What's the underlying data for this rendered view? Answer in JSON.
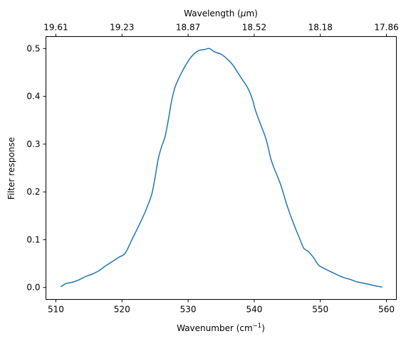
{
  "chart_data": {
    "type": "line",
    "xlabel": "Wavenumber (cm",
    "xlabel_sup": "−1",
    "xlabel_end": ")",
    "ylabel": "Filter response",
    "top_xlabel_pre": "Wavelength (",
    "top_xlabel_mu": "μ",
    "top_xlabel_post": "m)",
    "xlim": [
      508.5,
      561.5
    ],
    "ylim": [
      -0.025,
      0.525
    ],
    "x_ticks": [
      510,
      520,
      530,
      540,
      550,
      560
    ],
    "x_tick_labels": [
      "510",
      "520",
      "530",
      "540",
      "550",
      "560"
    ],
    "y_ticks": [
      0.0,
      0.1,
      0.2,
      0.3,
      0.4,
      0.5
    ],
    "y_tick_labels": [
      "0.0",
      "0.1",
      "0.2",
      "0.3",
      "0.4",
      "0.5"
    ],
    "top_ticks": [
      510,
      520,
      530,
      540,
      550,
      560
    ],
    "top_tick_labels": [
      "19.61",
      "19.23",
      "18.87",
      "18.52",
      "18.18",
      "17.86"
    ],
    "grid": false,
    "series": [
      {
        "color": "#1f77b4",
        "x": [
          510.8,
          511.5,
          512.5,
          513.5,
          514.5,
          515.5,
          516.5,
          517.5,
          518.5,
          519.5,
          520.5,
          521.5,
          522.5,
          523.5,
          524.5,
          525.0,
          525.5,
          526.0,
          526.5,
          527.0,
          527.5,
          528.0,
          528.5,
          529.5,
          530.5,
          531.5,
          532.5,
          533.2,
          534.0,
          535.0,
          536.0,
          536.8,
          537.5,
          538.2,
          539.0,
          539.7,
          540.2,
          541.0,
          541.8,
          542.5,
          543.0,
          544.0,
          545.0,
          546.0,
          547.0,
          547.5,
          548.2,
          549.0,
          549.8,
          551.0,
          552.5,
          553.5,
          554.5,
          555.5,
          556.5,
          557.5,
          558.5,
          559.3
        ],
        "y": [
          0.002,
          0.008,
          0.011,
          0.016,
          0.023,
          0.028,
          0.035,
          0.045,
          0.054,
          0.063,
          0.072,
          0.1,
          0.128,
          0.158,
          0.195,
          0.23,
          0.27,
          0.295,
          0.315,
          0.35,
          0.39,
          0.418,
          0.435,
          0.462,
          0.483,
          0.495,
          0.498,
          0.5,
          0.493,
          0.488,
          0.477,
          0.465,
          0.45,
          0.435,
          0.418,
          0.395,
          0.37,
          0.34,
          0.31,
          0.27,
          0.25,
          0.215,
          0.17,
          0.132,
          0.098,
          0.082,
          0.075,
          0.062,
          0.046,
          0.037,
          0.027,
          0.021,
          0.017,
          0.012,
          0.009,
          0.006,
          0.003,
          0.001
        ]
      }
    ]
  }
}
